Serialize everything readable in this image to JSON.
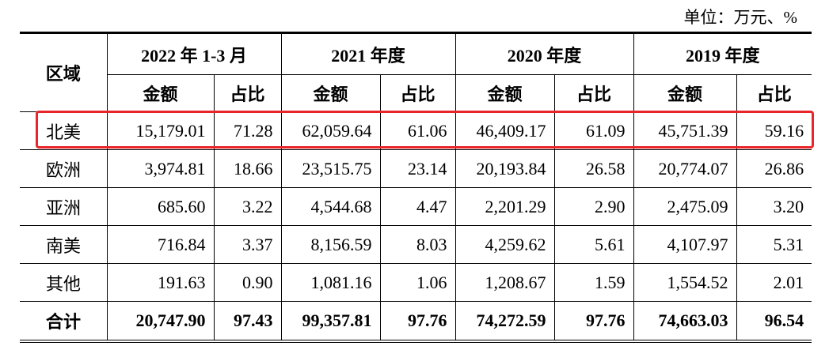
{
  "header": {
    "unit": "单位：万元、%"
  },
  "table": {
    "region_header": "区域",
    "periods": [
      "2022 年 1-3 月",
      "2021 年度",
      "2020 年度",
      "2019 年度"
    ],
    "subheaders": [
      "金额",
      "占比",
      "金额",
      "占比",
      "金额",
      "占比",
      "金额",
      "占比"
    ],
    "rows": [
      [
        "北美",
        "15,179.01",
        "71.28",
        "62,059.64",
        "61.06",
        "46,409.17",
        "61.09",
        "45,751.39",
        "59.16"
      ],
      [
        "欧洲",
        "3,974.81",
        "18.66",
        "23,515.75",
        "23.14",
        "20,193.84",
        "26.58",
        "20,774.07",
        "26.86"
      ],
      [
        "亚洲",
        "685.60",
        "3.22",
        "4,544.68",
        "4.47",
        "2,201.29",
        "2.90",
        "2,475.09",
        "3.20"
      ],
      [
        "南美",
        "716.84",
        "3.37",
        "8,156.59",
        "8.03",
        "4,259.62",
        "5.61",
        "4,107.97",
        "5.31"
      ],
      [
        "其他",
        "191.63",
        "0.90",
        "1,081.16",
        "1.06",
        "1,208.67",
        "1.59",
        "1,554.52",
        "2.01"
      ],
      [
        "合计",
        "20,747.90",
        "97.43",
        "99,357.81",
        "97.76",
        "74,272.59",
        "97.76",
        "74,663.03",
        "96.54"
      ]
    ]
  }
}
